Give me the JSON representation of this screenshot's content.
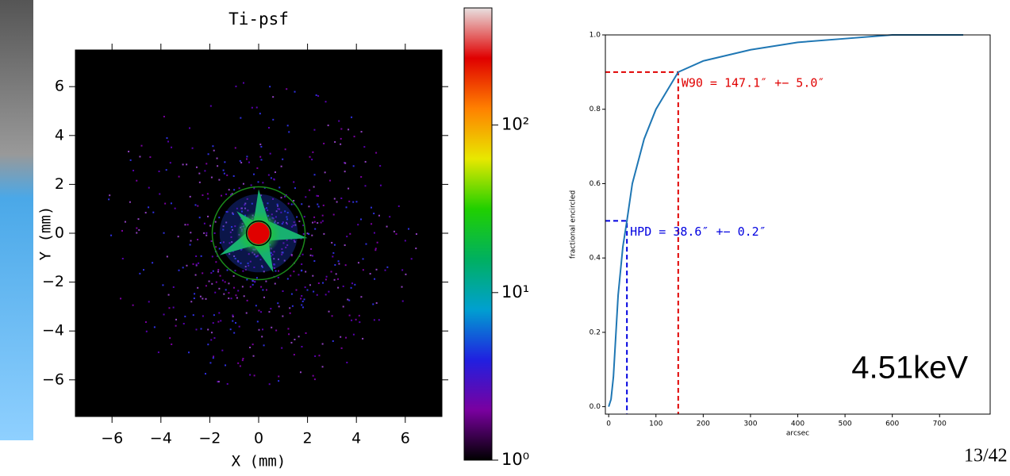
{
  "chart_data": [
    {
      "type": "heatmap",
      "title": "Ti-psf",
      "x_label": "X (mm)",
      "y_label": "Y (mm)",
      "xlim": [
        -7.5,
        7.5
      ],
      "ylim": [
        -7.5,
        7.5
      ],
      "xticks": [
        {
          "value": -6,
          "label": "−6"
        },
        {
          "value": -4,
          "label": "−4"
        },
        {
          "value": -2,
          "label": "−2"
        },
        0,
        2,
        4,
        6
      ],
      "yticks": [
        {
          "value": -6,
          "label": "−6"
        },
        {
          "value": -4,
          "label": "−4"
        },
        {
          "value": -2,
          "label": "−2"
        },
        0,
        2,
        4,
        6
      ],
      "circles": [
        {
          "r": 1.9,
          "color": "#1a8a1a"
        },
        {
          "r": 0.5,
          "color": "#000000"
        }
      ],
      "colorbar": {
        "scale": "log",
        "lim": [
          1,
          500
        ],
        "ticks": [
          {
            "value": 1,
            "label": "10⁰"
          },
          {
            "value": 10,
            "label": "10¹"
          },
          {
            "value": 100,
            "label": "10²"
          }
        ],
        "colors": [
          "#000000",
          "#7a00a0",
          "#2020e0",
          "#00a0d0",
          "#00b060",
          "#20d000",
          "#e8e800",
          "#ff8000",
          "#e00000",
          "#e8e0e0"
        ]
      }
    },
    {
      "type": "line",
      "x_label": "arcsec",
      "y_label": "fractional encircled",
      "xlim": [
        -7,
        807
      ],
      "ylim": [
        -0.02,
        1.0
      ],
      "xticks": [
        0,
        100,
        200,
        300,
        400,
        500,
        600,
        700
      ],
      "yticks": [
        {
          "value": 0,
          "label": "0.0"
        },
        0.2,
        0.4,
        0.6,
        0.8,
        {
          "value": 1,
          "label": "1.0"
        }
      ],
      "series": [
        {
          "color": "#1f77b4",
          "x": [
            0,
            5,
            10,
            20,
            30,
            38.6,
            50,
            75,
            100,
            147.1,
            200,
            300,
            400,
            500,
            600,
            650,
            750
          ],
          "values": [
            0,
            0.02,
            0.08,
            0.3,
            0.43,
            0.5,
            0.6,
            0.72,
            0.8,
            0.9,
            0.93,
            0.96,
            0.98,
            0.99,
            1.0,
            1.0,
            1.0
          ]
        }
      ],
      "markers": [
        {
          "x": 147.1,
          "y": 0.9,
          "color": "#e00000",
          "label": "W90 = 147.1″ +− 5.0″"
        },
        {
          "x": 38.6,
          "y": 0.5,
          "color": "#0000e0",
          "label": "HPD = 38.6″ +− 0.2″"
        }
      ],
      "annotation": "4.51keV"
    }
  ],
  "page_number": "13/42"
}
